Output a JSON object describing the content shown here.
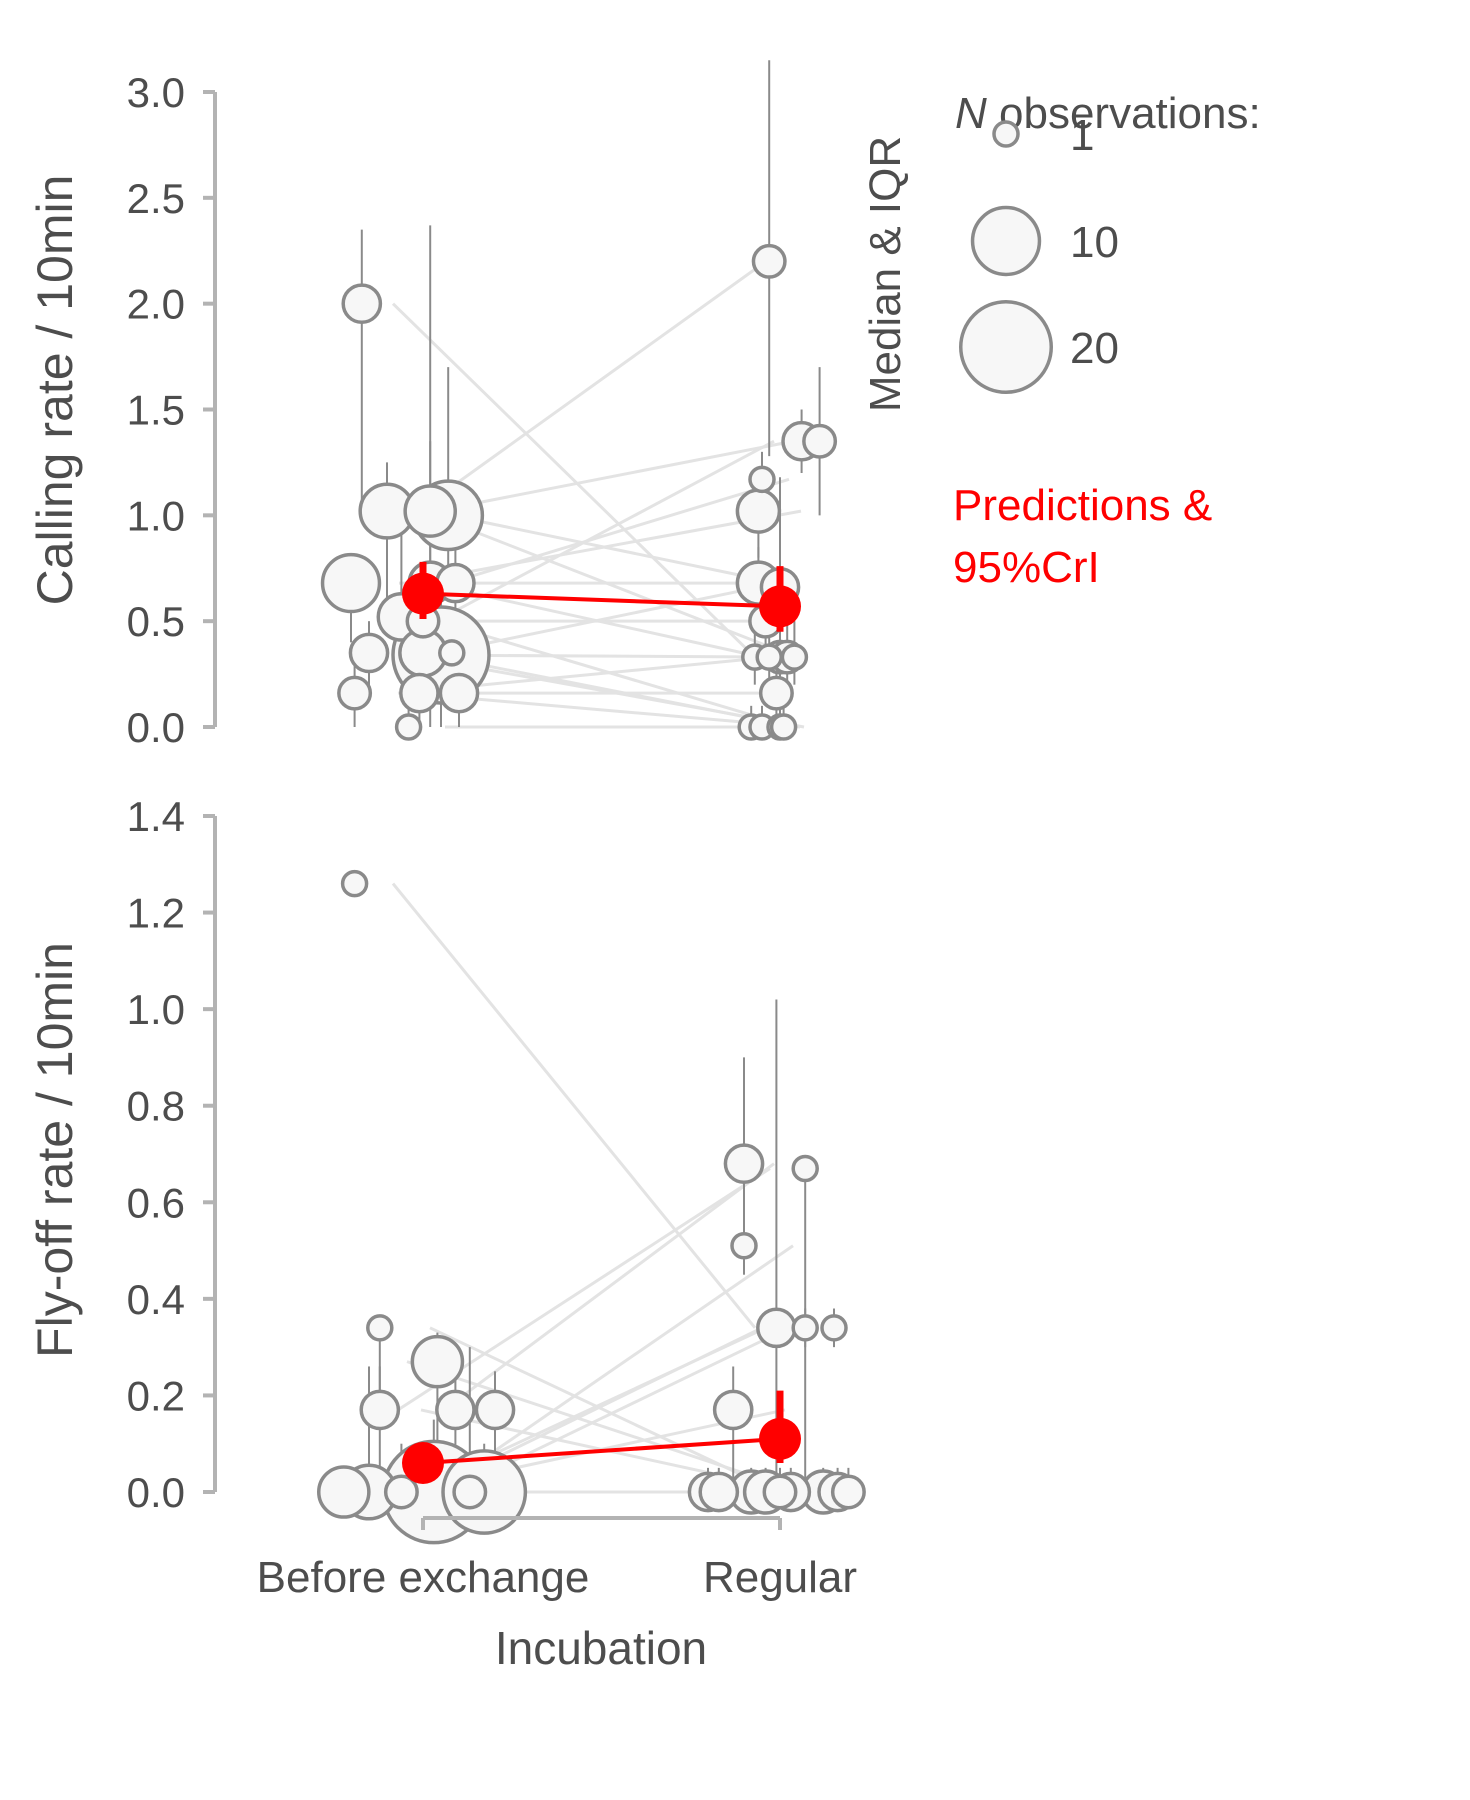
{
  "chart_data": [
    {
      "type": "scatter",
      "ylabel": "Calling rate / 10min",
      "ylim": [
        0,
        3.0
      ],
      "ytick_labels": [
        "0.0",
        "0.5",
        "1.0",
        "1.5",
        "2.0",
        "2.5",
        "3.0"
      ],
      "yticks": [
        0,
        0.5,
        1.0,
        1.5,
        2.0,
        2.5,
        3.0
      ],
      "categories": [
        "Before exchange",
        "Regular"
      ],
      "points": [
        {
          "group": "Before exchange",
          "jitter": -0.17,
          "y": 2.0,
          "n": 3,
          "q1": 1.0,
          "q3": 2.35
        },
        {
          "group": "Before exchange",
          "jitter": -0.1,
          "y": 1.02,
          "n": 7,
          "q1": 0.5,
          "q3": 1.25
        },
        {
          "group": "Before exchange",
          "jitter": -0.2,
          "y": 0.68,
          "n": 8,
          "q1": 0.4,
          "q3": 0.75
        },
        {
          "group": "Before exchange",
          "jitter": -0.06,
          "y": 0.52,
          "n": 5,
          "q1": 0.3,
          "q3": 1.0
        },
        {
          "group": "Before exchange",
          "jitter": -0.15,
          "y": 0.35,
          "n": 3,
          "q1": 0.17,
          "q3": 0.5
        },
        {
          "group": "Before exchange",
          "jitter": -0.19,
          "y": 0.16,
          "n": 2,
          "q1": 0.0,
          "q3": 0.35
        },
        {
          "group": "Before exchange",
          "jitter": 0.02,
          "y": 1.02,
          "n": 6,
          "q1": 0.0,
          "q3": 2.37
        },
        {
          "group": "Before exchange",
          "jitter": 0.07,
          "y": 1.0,
          "n": 12,
          "q1": 0.67,
          "q3": 1.7
        },
        {
          "group": "Before exchange",
          "jitter": 0.02,
          "y": 0.68,
          "n": 4,
          "q1": 0.5,
          "q3": 1.35
        },
        {
          "group": "Before exchange",
          "jitter": 0.09,
          "y": 0.68,
          "n": 3,
          "q1": 0.5,
          "q3": 1.0
        },
        {
          "group": "Before exchange",
          "jitter": 0.0,
          "y": 0.5,
          "n": 2,
          "q1": 0.3,
          "q3": 0.7
        },
        {
          "group": "Before exchange",
          "jitter": 0.0,
          "y": 0.35,
          "n": 5,
          "q1": 0.2,
          "q3": 0.5
        },
        {
          "group": "Before exchange",
          "jitter": 0.05,
          "y": 0.34,
          "n": 25,
          "q1": 0.0,
          "q3": 0.75
        },
        {
          "group": "Before exchange",
          "jitter": 0.08,
          "y": 0.35,
          "n": 1,
          "q1": 0.3,
          "q3": 0.4
        },
        {
          "group": "Before exchange",
          "jitter": -0.01,
          "y": 0.16,
          "n": 3,
          "q1": 0.0,
          "q3": 0.3
        },
        {
          "group": "Before exchange",
          "jitter": 0.1,
          "y": 0.16,
          "n": 3,
          "q1": 0.0,
          "q3": 0.3
        },
        {
          "group": "Before exchange",
          "jitter": -0.04,
          "y": 0.0,
          "n": 1,
          "q1": 0.0,
          "q3": 0.1
        },
        {
          "group": "Regular",
          "jitter": -0.03,
          "y": 2.2,
          "n": 2,
          "q1": 1.28,
          "q3": 3.15
        },
        {
          "group": "Regular",
          "jitter": 0.06,
          "y": 1.35,
          "n": 3,
          "q1": 1.2,
          "q3": 1.5
        },
        {
          "group": "Regular",
          "jitter": 0.11,
          "y": 1.35,
          "n": 2,
          "q1": 1.0,
          "q3": 1.7
        },
        {
          "group": "Regular",
          "jitter": -0.05,
          "y": 1.17,
          "n": 1,
          "q1": 1.0,
          "q3": 1.3
        },
        {
          "group": "Regular",
          "jitter": -0.06,
          "y": 1.02,
          "n": 4,
          "q1": 0.8,
          "q3": 1.2
        },
        {
          "group": "Regular",
          "jitter": -0.06,
          "y": 0.68,
          "n": 4,
          "q1": 0.5,
          "q3": 0.85
        },
        {
          "group": "Regular",
          "jitter": 0.0,
          "y": 0.66,
          "n": 3,
          "q1": 0.4,
          "q3": 1.18
        },
        {
          "group": "Regular",
          "jitter": -0.04,
          "y": 0.5,
          "n": 2,
          "q1": 0.3,
          "q3": 0.67
        },
        {
          "group": "Regular",
          "jitter": -0.07,
          "y": 0.33,
          "n": 1,
          "q1": 0.2,
          "q3": 0.5
        },
        {
          "group": "Regular",
          "jitter": -0.03,
          "y": 0.33,
          "n": 1,
          "q1": 0.2,
          "q3": 0.5
        },
        {
          "group": "Regular",
          "jitter": 0.0,
          "y": 0.33,
          "n": 2,
          "q1": 0.2,
          "q3": 0.5
        },
        {
          "group": "Regular",
          "jitter": 0.02,
          "y": 0.33,
          "n": 2,
          "q1": 0.2,
          "q3": 0.5
        },
        {
          "group": "Regular",
          "jitter": 0.04,
          "y": 0.33,
          "n": 1,
          "q1": 0.2,
          "q3": 0.5
        },
        {
          "group": "Regular",
          "jitter": -0.01,
          "y": 0.16,
          "n": 2,
          "q1": 0.0,
          "q3": 0.3
        },
        {
          "group": "Regular",
          "jitter": -0.08,
          "y": 0.0,
          "n": 1,
          "q1": 0.0,
          "q3": 0.1
        },
        {
          "group": "Regular",
          "jitter": -0.05,
          "y": 0.0,
          "n": 1,
          "q1": 0.0,
          "q3": 0.1
        },
        {
          "group": "Regular",
          "jitter": 0.0,
          "y": 0.0,
          "n": 1,
          "q1": 0.0,
          "q3": 0.1
        },
        {
          "group": "Regular",
          "jitter": 0.01,
          "y": 0.0,
          "n": 1,
          "q1": 0.0,
          "q3": 0.1
        }
      ],
      "pair_lines": [
        [
          2.0,
          0.33
        ],
        [
          1.02,
          0.68
        ],
        [
          0.68,
          1.02
        ],
        [
          0.52,
          1.35
        ],
        [
          0.35,
          0.0
        ],
        [
          0.16,
          0.33
        ],
        [
          1.02,
          1.35
        ],
        [
          1.0,
          2.2
        ],
        [
          0.68,
          1.17
        ],
        [
          0.68,
          0.33
        ],
        [
          0.5,
          0.5
        ],
        [
          0.35,
          0.66
        ],
        [
          0.34,
          0.33
        ],
        [
          0.35,
          0.0
        ],
        [
          0.16,
          0.16
        ],
        [
          0.16,
          0.0
        ],
        [
          0.0,
          0.0
        ],
        [
          1.02,
          0.33
        ],
        [
          0.68,
          0.68
        ],
        [
          0.5,
          0.0
        ]
      ],
      "predictions": [
        {
          "group": "Before exchange",
          "y": 0.63,
          "lower": 0.51,
          "upper": 0.78
        },
        {
          "group": "Regular",
          "y": 0.57,
          "lower": 0.45,
          "upper": 0.76
        }
      ]
    },
    {
      "type": "scatter",
      "ylabel": "Fly-off rate / 10min",
      "xlabel": "Incubation",
      "ylim": [
        0,
        1.4
      ],
      "ytick_labels": [
        "0.0",
        "0.2",
        "0.4",
        "0.6",
        "0.8",
        "1.0",
        "1.2",
        "1.4"
      ],
      "yticks": [
        0,
        0.2,
        0.4,
        0.6,
        0.8,
        1.0,
        1.2,
        1.4
      ],
      "categories": [
        "Before exchange",
        "Regular"
      ],
      "points": [
        {
          "group": "Before exchange",
          "jitter": -0.19,
          "y": 1.26,
          "n": 1,
          "q1": 1.26,
          "q3": 1.26
        },
        {
          "group": "Before exchange",
          "jitter": -0.12,
          "y": 0.34,
          "n": 1,
          "q1": 0.2,
          "q3": 0.34
        },
        {
          "group": "Before exchange",
          "jitter": 0.04,
          "y": 0.27,
          "n": 6,
          "q1": 0.0,
          "q3": 0.33
        },
        {
          "group": "Before exchange",
          "jitter": -0.12,
          "y": 0.17,
          "n": 3,
          "q1": 0.0,
          "q3": 0.26
        },
        {
          "group": "Before exchange",
          "jitter": 0.09,
          "y": 0.17,
          "n": 3,
          "q1": 0.0,
          "q3": 0.3
        },
        {
          "group": "Before exchange",
          "jitter": 0.2,
          "y": 0.17,
          "n": 3,
          "q1": 0.0,
          "q3": 0.25
        },
        {
          "group": "Before exchange",
          "jitter": -0.22,
          "y": 0.0,
          "n": 6,
          "q1": 0.0,
          "q3": 0.05
        },
        {
          "group": "Before exchange",
          "jitter": -0.15,
          "y": 0.0,
          "n": 7,
          "q1": 0.0,
          "q3": 0.26
        },
        {
          "group": "Before exchange",
          "jitter": -0.06,
          "y": 0.0,
          "n": 2,
          "q1": 0.0,
          "q3": 0.1
        },
        {
          "group": "Before exchange",
          "jitter": 0.03,
          "y": 0.0,
          "n": 28,
          "q1": 0.0,
          "q3": 0.15
        },
        {
          "group": "Before exchange",
          "jitter": 0.13,
          "y": 0.0,
          "n": 2,
          "q1": 0.0,
          "q3": 0.3
        },
        {
          "group": "Before exchange",
          "jitter": 0.17,
          "y": 0.0,
          "n": 18,
          "q1": 0.0,
          "q3": 0.1
        },
        {
          "group": "Regular",
          "jitter": -0.1,
          "y": 0.68,
          "n": 3,
          "q1": 0.5,
          "q3": 0.9
        },
        {
          "group": "Regular",
          "jitter": 0.07,
          "y": 0.67,
          "n": 1,
          "q1": 0.0,
          "q3": 0.68
        },
        {
          "group": "Regular",
          "jitter": -0.1,
          "y": 0.51,
          "n": 1,
          "q1": 0.45,
          "q3": 0.6
        },
        {
          "group": "Regular",
          "jitter": -0.01,
          "y": 0.34,
          "n": 3,
          "q1": 0.0,
          "q3": 1.02
        },
        {
          "group": "Regular",
          "jitter": 0.07,
          "y": 0.34,
          "n": 1,
          "q1": 0.3,
          "q3": 0.38
        },
        {
          "group": "Regular",
          "jitter": 0.15,
          "y": 0.34,
          "n": 1,
          "q1": 0.3,
          "q3": 0.38
        },
        {
          "group": "Regular",
          "jitter": -0.13,
          "y": 0.17,
          "n": 3,
          "q1": 0.0,
          "q3": 0.26
        },
        {
          "group": "Regular",
          "jitter": -0.2,
          "y": 0.0,
          "n": 3,
          "q1": 0.0,
          "q3": 0.05
        },
        {
          "group": "Regular",
          "jitter": -0.17,
          "y": 0.0,
          "n": 3,
          "q1": 0.0,
          "q3": 0.05
        },
        {
          "group": "Regular",
          "jitter": -0.08,
          "y": 0.0,
          "n": 4,
          "q1": 0.0,
          "q3": 0.05
        },
        {
          "group": "Regular",
          "jitter": -0.04,
          "y": 0.0,
          "n": 4,
          "q1": 0.0,
          "q3": 0.05
        },
        {
          "group": "Regular",
          "jitter": 0.0,
          "y": 0.0,
          "n": 2,
          "q1": 0.0,
          "q3": 0.05
        },
        {
          "group": "Regular",
          "jitter": 0.03,
          "y": 0.0,
          "n": 3,
          "q1": 0.0,
          "q3": 0.05
        },
        {
          "group": "Regular",
          "jitter": 0.12,
          "y": 0.0,
          "n": 4,
          "q1": 0.0,
          "q3": 0.05
        },
        {
          "group": "Regular",
          "jitter": 0.16,
          "y": 0.0,
          "n": 3,
          "q1": 0.0,
          "q3": 0.05
        },
        {
          "group": "Regular",
          "jitter": 0.19,
          "y": 0.0,
          "n": 2,
          "q1": 0.0,
          "q3": 0.05
        }
      ],
      "pair_lines": [
        [
          1.26,
          0.34
        ],
        [
          0.34,
          0.0
        ],
        [
          0.27,
          0.0
        ],
        [
          0.17,
          0.68
        ],
        [
          0.17,
          0.0
        ],
        [
          0.17,
          0.67
        ],
        [
          0.0,
          0.51
        ],
        [
          0.0,
          0.34
        ],
        [
          0.0,
          0.34
        ],
        [
          0.0,
          0.34
        ],
        [
          0.0,
          0.17
        ],
        [
          0.0,
          0.0
        ],
        [
          0.0,
          0.0
        ],
        [
          0.0,
          0.0
        ]
      ],
      "predictions": [
        {
          "group": "Before exchange",
          "y": 0.06,
          "lower": 0.03,
          "upper": 0.1
        },
        {
          "group": "Regular",
          "y": 0.11,
          "lower": 0.06,
          "upper": 0.21
        }
      ]
    }
  ],
  "legend": {
    "size_title_italic": "N",
    "size_title_rest": " observations:",
    "size_entries": [
      {
        "label": "1",
        "n": 1
      },
      {
        "label": "10",
        "n": 10
      },
      {
        "label": "20",
        "n": 20
      }
    ],
    "median_label": "Median & IQR",
    "predictions_line1": "Predictions &",
    "predictions_line2": "95%CrI"
  },
  "colors": {
    "point_stroke": "#8a8a8a",
    "point_fill": "#f7f7f7",
    "pair_line": "#e3e3e3",
    "iqr_line": "#8a8a8a",
    "axis": "#b3b3b3",
    "text": "#4d4d4d",
    "prediction": "#ff0000"
  }
}
